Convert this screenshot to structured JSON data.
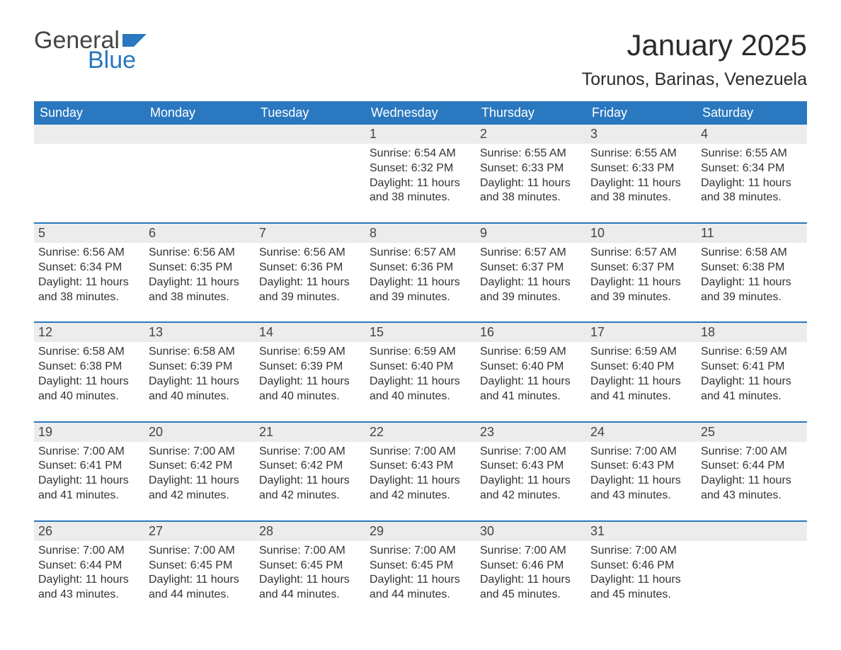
{
  "brand": {
    "text1": "General",
    "text2": "Blue",
    "flag_color": "#2a78bf",
    "text1_color": "#444444"
  },
  "title": "January 2025",
  "location": "Torunos, Barinas, Venezuela",
  "colors": {
    "header_bg": "#2a78bf",
    "header_text": "#ffffff",
    "daynum_bg": "#ececec",
    "row_divider": "#2a78bf",
    "body_text": "#333333",
    "background": "#ffffff"
  },
  "weekdays": [
    "Sunday",
    "Monday",
    "Tuesday",
    "Wednesday",
    "Thursday",
    "Friday",
    "Saturday"
  ],
  "layout": {
    "columns": 7,
    "rows": 5,
    "leading_blanks": 3,
    "trailing_blanks": 1
  },
  "days": [
    {
      "n": 1,
      "sunrise": "6:54 AM",
      "sunset": "6:32 PM",
      "daylight": "11 hours and 38 minutes."
    },
    {
      "n": 2,
      "sunrise": "6:55 AM",
      "sunset": "6:33 PM",
      "daylight": "11 hours and 38 minutes."
    },
    {
      "n": 3,
      "sunrise": "6:55 AM",
      "sunset": "6:33 PM",
      "daylight": "11 hours and 38 minutes."
    },
    {
      "n": 4,
      "sunrise": "6:55 AM",
      "sunset": "6:34 PM",
      "daylight": "11 hours and 38 minutes."
    },
    {
      "n": 5,
      "sunrise": "6:56 AM",
      "sunset": "6:34 PM",
      "daylight": "11 hours and 38 minutes."
    },
    {
      "n": 6,
      "sunrise": "6:56 AM",
      "sunset": "6:35 PM",
      "daylight": "11 hours and 38 minutes."
    },
    {
      "n": 7,
      "sunrise": "6:56 AM",
      "sunset": "6:36 PM",
      "daylight": "11 hours and 39 minutes."
    },
    {
      "n": 8,
      "sunrise": "6:57 AM",
      "sunset": "6:36 PM",
      "daylight": "11 hours and 39 minutes."
    },
    {
      "n": 9,
      "sunrise": "6:57 AM",
      "sunset": "6:37 PM",
      "daylight": "11 hours and 39 minutes."
    },
    {
      "n": 10,
      "sunrise": "6:57 AM",
      "sunset": "6:37 PM",
      "daylight": "11 hours and 39 minutes."
    },
    {
      "n": 11,
      "sunrise": "6:58 AM",
      "sunset": "6:38 PM",
      "daylight": "11 hours and 39 minutes."
    },
    {
      "n": 12,
      "sunrise": "6:58 AM",
      "sunset": "6:38 PM",
      "daylight": "11 hours and 40 minutes."
    },
    {
      "n": 13,
      "sunrise": "6:58 AM",
      "sunset": "6:39 PM",
      "daylight": "11 hours and 40 minutes."
    },
    {
      "n": 14,
      "sunrise": "6:59 AM",
      "sunset": "6:39 PM",
      "daylight": "11 hours and 40 minutes."
    },
    {
      "n": 15,
      "sunrise": "6:59 AM",
      "sunset": "6:40 PM",
      "daylight": "11 hours and 40 minutes."
    },
    {
      "n": 16,
      "sunrise": "6:59 AM",
      "sunset": "6:40 PM",
      "daylight": "11 hours and 41 minutes."
    },
    {
      "n": 17,
      "sunrise": "6:59 AM",
      "sunset": "6:40 PM",
      "daylight": "11 hours and 41 minutes."
    },
    {
      "n": 18,
      "sunrise": "6:59 AM",
      "sunset": "6:41 PM",
      "daylight": "11 hours and 41 minutes."
    },
    {
      "n": 19,
      "sunrise": "7:00 AM",
      "sunset": "6:41 PM",
      "daylight": "11 hours and 41 minutes."
    },
    {
      "n": 20,
      "sunrise": "7:00 AM",
      "sunset": "6:42 PM",
      "daylight": "11 hours and 42 minutes."
    },
    {
      "n": 21,
      "sunrise": "7:00 AM",
      "sunset": "6:42 PM",
      "daylight": "11 hours and 42 minutes."
    },
    {
      "n": 22,
      "sunrise": "7:00 AM",
      "sunset": "6:43 PM",
      "daylight": "11 hours and 42 minutes."
    },
    {
      "n": 23,
      "sunrise": "7:00 AM",
      "sunset": "6:43 PM",
      "daylight": "11 hours and 42 minutes."
    },
    {
      "n": 24,
      "sunrise": "7:00 AM",
      "sunset": "6:43 PM",
      "daylight": "11 hours and 43 minutes."
    },
    {
      "n": 25,
      "sunrise": "7:00 AM",
      "sunset": "6:44 PM",
      "daylight": "11 hours and 43 minutes."
    },
    {
      "n": 26,
      "sunrise": "7:00 AM",
      "sunset": "6:44 PM",
      "daylight": "11 hours and 43 minutes."
    },
    {
      "n": 27,
      "sunrise": "7:00 AM",
      "sunset": "6:45 PM",
      "daylight": "11 hours and 44 minutes."
    },
    {
      "n": 28,
      "sunrise": "7:00 AM",
      "sunset": "6:45 PM",
      "daylight": "11 hours and 44 minutes."
    },
    {
      "n": 29,
      "sunrise": "7:00 AM",
      "sunset": "6:45 PM",
      "daylight": "11 hours and 44 minutes."
    },
    {
      "n": 30,
      "sunrise": "7:00 AM",
      "sunset": "6:46 PM",
      "daylight": "11 hours and 45 minutes."
    },
    {
      "n": 31,
      "sunrise": "7:00 AM",
      "sunset": "6:46 PM",
      "daylight": "11 hours and 45 minutes."
    }
  ],
  "labels": {
    "sunrise": "Sunrise:",
    "sunset": "Sunset:",
    "daylight": "Daylight:"
  }
}
